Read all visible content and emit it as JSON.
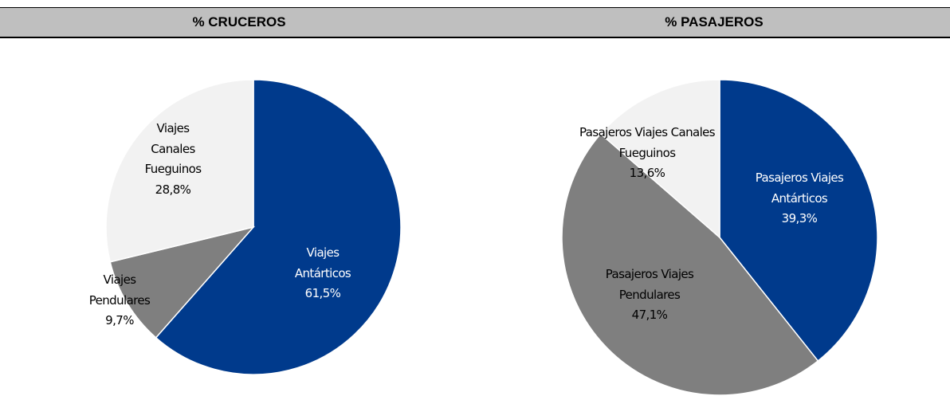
{
  "header": {
    "columns": [
      "% CRUCEROS",
      "% PASAJEROS"
    ]
  },
  "chart_data": [
    {
      "type": "pie",
      "categories": [
        "Viajes Antárticos",
        "Viajes Pendulares",
        "Viajes Canales Fueguinos"
      ],
      "values": [
        61.5,
        9.7,
        28.8
      ],
      "value_labels": [
        "61,5%",
        "9,7%",
        "28,8%"
      ],
      "colors": [
        "#003a8c",
        "#7f7f7f",
        "#f2f2f2"
      ],
      "start_angle": 0,
      "direction": "clockwise"
    },
    {
      "type": "pie",
      "categories": [
        "Pasajeros Viajes Antárticos",
        "Pasajeros Viajes Pendulares",
        "Pasajeros Viajes Canales Fueguinos"
      ],
      "values": [
        39.3,
        47.1,
        13.6
      ],
      "value_labels": [
        "39,3%",
        "47,1%",
        "13,6%"
      ],
      "colors": [
        "#003a8c",
        "#7f7f7f",
        "#f2f2f2"
      ],
      "start_angle": 0,
      "direction": "clockwise"
    }
  ]
}
